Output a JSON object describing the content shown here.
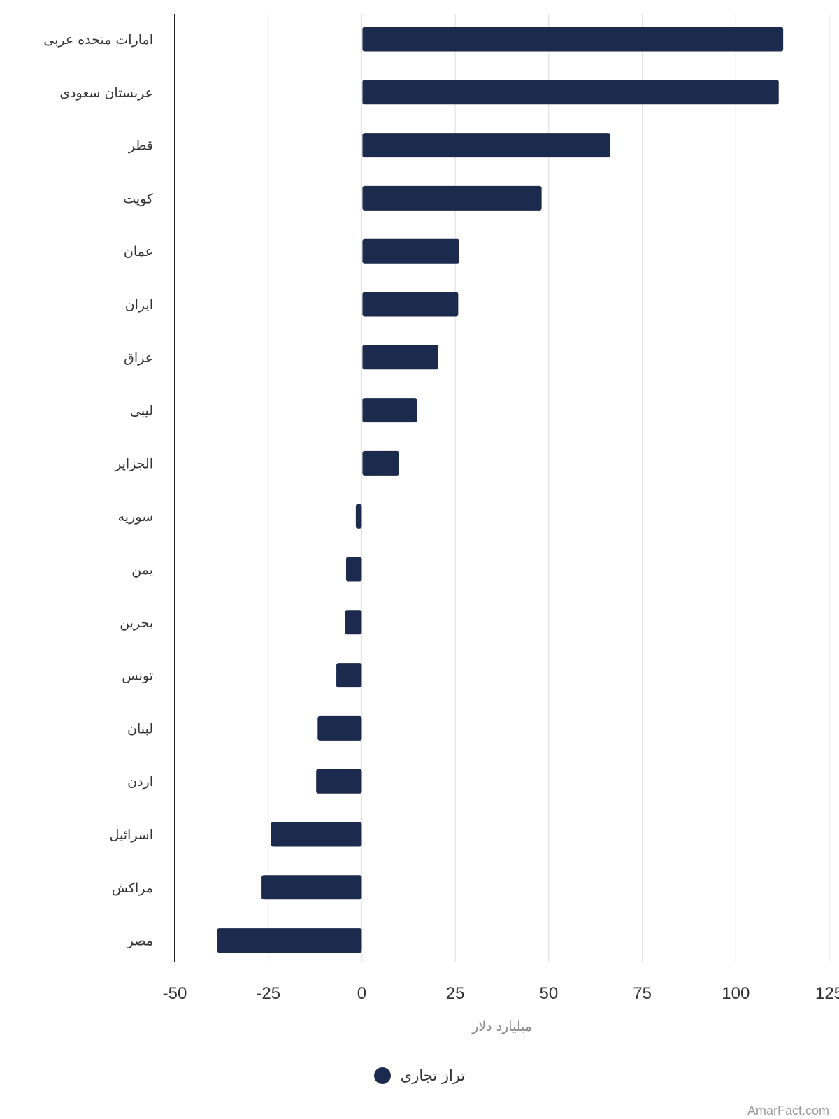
{
  "chart_data": {
    "type": "bar",
    "orientation": "horizontal",
    "categories": [
      "امارات متحده عربی",
      "عربستان سعودی",
      "قطر",
      "کویت",
      "عمان",
      "ایران",
      "عراق",
      "لیبی",
      "الجزایر",
      "سوریه",
      "یمن",
      "بحرین",
      "تونس",
      "لبنان",
      "اردن",
      "اسرائیل",
      "مراکش",
      "مصر"
    ],
    "series": [
      {
        "name": "تراز تجاری",
        "color": "#1c2a4d",
        "values": [
          112.5,
          111.3,
          66.3,
          47.9,
          25.9,
          25.6,
          20.3,
          14.6,
          9.8,
          -1.6,
          -4.2,
          -4.5,
          -6.8,
          -11.8,
          -12.2,
          -24.3,
          -26.8,
          -38.7
        ]
      }
    ],
    "xlabel": "میلیارد دلار",
    "xlim": [
      -50,
      125
    ],
    "xticks": [
      -50,
      -25,
      0,
      25,
      50,
      75,
      100,
      125
    ],
    "grid": true,
    "legend_position": "bottom"
  },
  "watermark": "AmarFact.com"
}
